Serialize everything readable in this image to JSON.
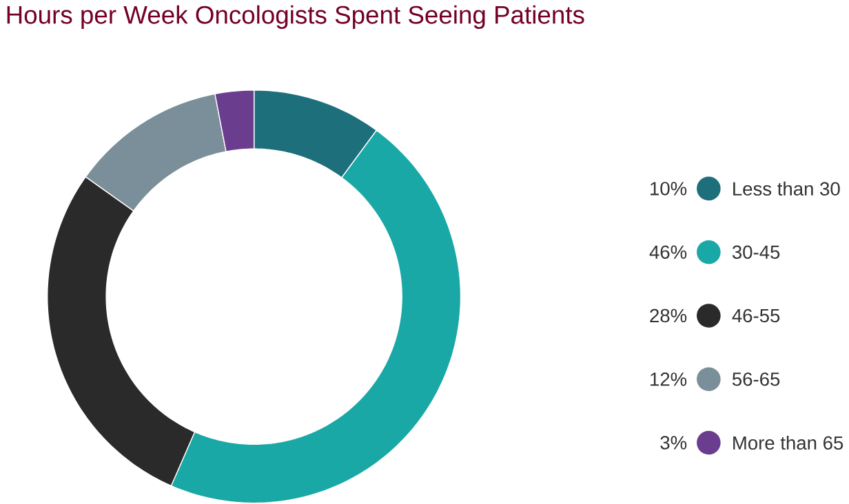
{
  "chart_data": {
    "type": "donut",
    "title": "Hours per Week Oncologists Spent Seeing Patients",
    "categories": [
      "Less than 30",
      "30-45",
      "46-55",
      "56-65",
      "More than 65"
    ],
    "values": [
      10,
      46,
      28,
      12,
      3
    ],
    "value_labels": [
      "10%",
      "46%",
      "28%",
      "12%",
      "3%"
    ],
    "colors": [
      "#1e6f7c",
      "#1aa8a6",
      "#2a2a2a",
      "#7a8f99",
      "#6a3d8f"
    ],
    "legend": "right"
  }
}
